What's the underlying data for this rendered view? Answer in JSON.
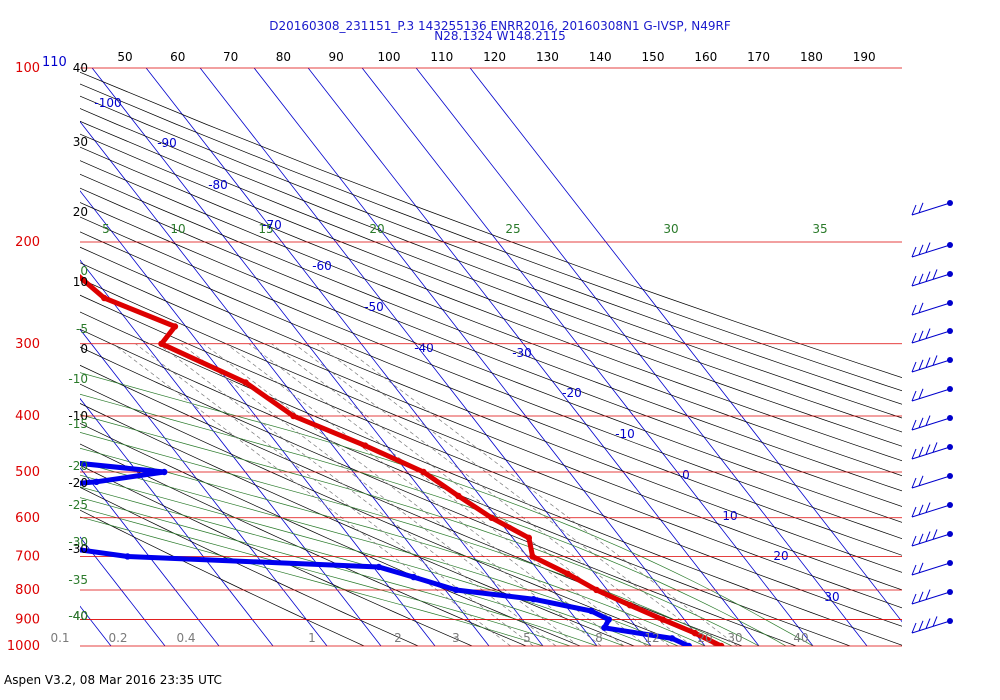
{
  "title_line1": "D20160308_231151_P.3 143255136 ENRR2016, 20160308N1 G-IVSP, N49RF",
  "title_line2": "N28.1324 W148.2115",
  "footer": "Aspen V3.2, 08 Mar 2016  23:35 UTC",
  "colors": {
    "pressure": "#dd0000",
    "temperature": "#dd0000",
    "dewpoint": "#0000ee",
    "isotherm": "#0000cc",
    "dry_adiabat": "#000000",
    "moist_adiabat": "#2a7a2a",
    "mixing_ratio": "#7a7a7a"
  },
  "chart_data": {
    "type": "skew-t log-p",
    "pressure_ticks": [
      "100",
      "200",
      "300",
      "400",
      "500",
      "600",
      "700",
      "800",
      "900",
      "1000"
    ],
    "pressure_values": [
      100,
      200,
      300,
      400,
      500,
      600,
      700,
      800,
      900,
      1000
    ],
    "pressure_top_sub_label": "110",
    "top_axis_ticks": [
      "50",
      "60",
      "70",
      "80",
      "90",
      "100",
      "110",
      "120",
      "130",
      "140",
      "150",
      "160",
      "170",
      "180",
      "190"
    ],
    "left_black_ticks": [
      "40",
      "30",
      "20",
      "10",
      "0",
      "-10",
      "-20",
      "-30",
      "-40"
    ],
    "left_green_ticks": [
      "0",
      "-5",
      "-10",
      "-15",
      "-20",
      "-25",
      "-30",
      "-35",
      "-40"
    ],
    "theta_e_labels": [
      "5",
      "10",
      "15",
      "20",
      "25",
      "30",
      "35"
    ],
    "isotherm_labels": [
      "-100",
      "-90",
      "-80",
      "-70",
      "-60",
      "-50",
      "-40",
      "-30",
      "-20",
      "-10",
      "0",
      "10",
      "20",
      "30"
    ],
    "mixing_ratio_labels": [
      "0.1",
      "0.2",
      "0.4",
      "1",
      "2",
      "3",
      "5",
      "8",
      "12",
      "20",
      "30",
      "40"
    ],
    "temperature_profile": [
      {
        "p": 200,
        "t": -45
      },
      {
        "p": 250,
        "t": -41
      },
      {
        "p": 280,
        "t": -32
      },
      {
        "p": 300,
        "t": -37
      },
      {
        "p": 350,
        "t": -27
      },
      {
        "p": 400,
        "t": -23
      },
      {
        "p": 450,
        "t": -14
      },
      {
        "p": 500,
        "t": -7
      },
      {
        "p": 550,
        "t": -4
      },
      {
        "p": 600,
        "t": -1
      },
      {
        "p": 650,
        "t": 3
      },
      {
        "p": 700,
        "t": 1
      },
      {
        "p": 750,
        "t": 5
      },
      {
        "p": 800,
        "t": 8
      },
      {
        "p": 850,
        "t": 12
      },
      {
        "p": 900,
        "t": 16
      },
      {
        "p": 950,
        "t": 20
      },
      {
        "p": 1000,
        "t": 23
      }
    ],
    "dewpoint_profile": [
      {
        "p": 230,
        "td": -79
      },
      {
        "p": 250,
        "td": -73
      },
      {
        "p": 270,
        "td": -66
      },
      {
        "p": 290,
        "td": -55
      },
      {
        "p": 300,
        "td": -82
      },
      {
        "p": 330,
        "td": -88
      },
      {
        "p": 370,
        "td": -79
      },
      {
        "p": 390,
        "td": -66
      },
      {
        "p": 400,
        "td": -72
      },
      {
        "p": 430,
        "td": -80
      },
      {
        "p": 470,
        "td": -81
      },
      {
        "p": 500,
        "td": -55
      },
      {
        "p": 520,
        "td": -69
      },
      {
        "p": 540,
        "td": -90
      },
      {
        "p": 560,
        "td": -82
      },
      {
        "p": 580,
        "td": -96
      },
      {
        "p": 620,
        "td": -91
      },
      {
        "p": 650,
        "td": -96
      },
      {
        "p": 700,
        "td": -74
      },
      {
        "p": 730,
        "td": -29
      },
      {
        "p": 760,
        "td": -24
      },
      {
        "p": 800,
        "td": -18
      },
      {
        "p": 830,
        "td": -5
      },
      {
        "p": 870,
        "td": 4
      },
      {
        "p": 900,
        "td": 6
      },
      {
        "p": 930,
        "td": 4
      },
      {
        "p": 970,
        "td": 15
      },
      {
        "p": 1000,
        "td": 17
      }
    ],
    "isolated_point": {
      "p": 180,
      "t": -40
    },
    "wind_barb_count": 15
  }
}
